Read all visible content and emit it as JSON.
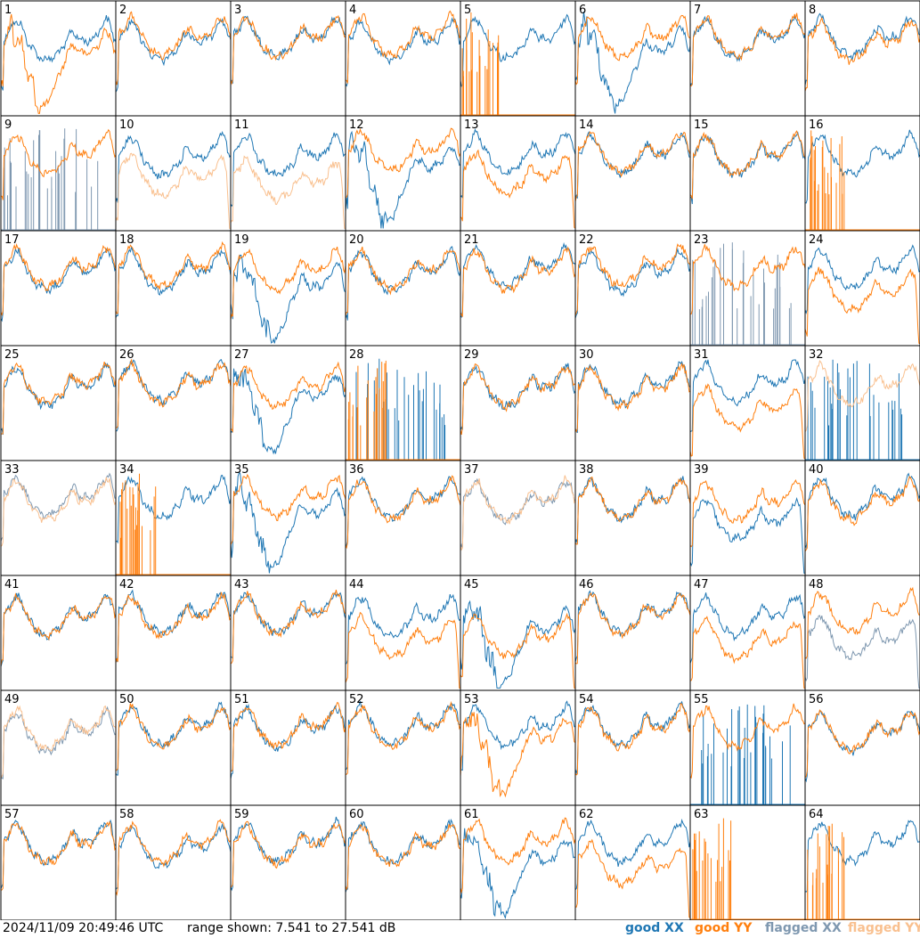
{
  "footer": {
    "timestamp": "2024/11/09 20:49:46 UTC",
    "range_text": "range shown: 7.541 to 27.541 dB"
  },
  "chart_data": {
    "type": "line",
    "layout": "8x8 small multiples",
    "panels": [
      "1",
      "2",
      "3",
      "4",
      "5",
      "6",
      "7",
      "8",
      "9",
      "10",
      "11",
      "12",
      "13",
      "14",
      "15",
      "16",
      "17",
      "18",
      "19",
      "20",
      "21",
      "22",
      "23",
      "24",
      "25",
      "26",
      "27",
      "28",
      "29",
      "30",
      "31",
      "32",
      "33",
      "34",
      "35",
      "36",
      "37",
      "38",
      "39",
      "40",
      "41",
      "42",
      "43",
      "44",
      "45",
      "46",
      "47",
      "48",
      "49",
      "50",
      "51",
      "52",
      "53",
      "54",
      "55",
      "56",
      "57",
      "58",
      "59",
      "60",
      "61",
      "62",
      "63",
      "64"
    ],
    "ylim": [
      7.541,
      27.541
    ],
    "y_unit": "dB",
    "legend": [
      {
        "label": "good XX",
        "color": "#1f77b4"
      },
      {
        "label": "good YY",
        "color": "#ff7f0e"
      },
      {
        "label": "flagged XX",
        "color": "#7f98b0"
      },
      {
        "label": "flagged YY",
        "color": "#f9c08f"
      }
    ],
    "colors": {
      "good_xx": "#1f77b4",
      "good_yy": "#ff7f0e",
      "flagged_xx": "#7f98b0",
      "flagged_yy": "#f9c08f"
    },
    "panel_types": {
      "xx": [
        "n",
        "n",
        "n",
        "n",
        "n",
        "dip",
        "n",
        "n",
        "flagged_spikes",
        "n",
        "n",
        "dip",
        "n",
        "n",
        "n",
        "n",
        "n",
        "n",
        "dip",
        "n",
        "n",
        "n",
        "flagged_spikes",
        "n",
        "n",
        "n",
        "dip",
        "spikes",
        "n",
        "n",
        "n",
        "spikes",
        "flagged",
        "n",
        "dip",
        "n",
        "flagged",
        "n",
        "low",
        "n",
        "n",
        "n",
        "n",
        "n",
        "dip",
        "n",
        "n",
        "flagged_low",
        "flagged",
        "n",
        "n",
        "n",
        "n",
        "n",
        "spikes",
        "n",
        "n",
        "n",
        "n",
        "n",
        "dip",
        "n",
        "none",
        "n"
      ],
      "yy": [
        "dip",
        "n",
        "n",
        "n",
        "spikes",
        "n",
        "n",
        "n",
        "n",
        "flagged_low",
        "flagged_low",
        "n",
        "low",
        "n",
        "n",
        "spikes",
        "n",
        "n",
        "n",
        "n",
        "n",
        "n",
        "n",
        "low",
        "n",
        "n",
        "n",
        "spikes",
        "n",
        "n",
        "low",
        "flagged",
        "flagged",
        "spikes",
        "n",
        "n",
        "flagged",
        "n",
        "n",
        "n",
        "n",
        "n",
        "n",
        "low",
        "low",
        "n",
        "low",
        "n",
        "flagged",
        "n",
        "n",
        "n",
        "dip",
        "n",
        "n",
        "n",
        "n",
        "n",
        "n",
        "n",
        "n",
        "low",
        "spikes",
        "spikes"
      ]
    }
  }
}
